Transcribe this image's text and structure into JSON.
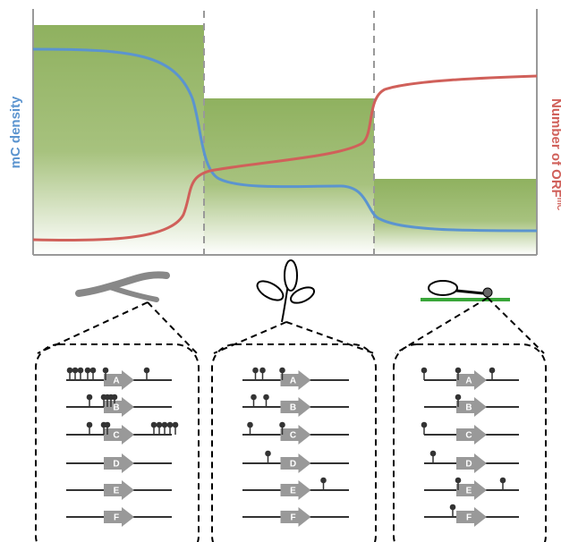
{
  "y_axis_left": "mC density",
  "y_axis_right": {
    "text": "Number of ORF",
    "superscript": "mC"
  },
  "panels": [
    {
      "genes": [
        "A",
        "B",
        "C",
        "D",
        "E",
        "F"
      ]
    },
    {
      "genes": [
        "A",
        "B",
        "C",
        "D",
        "E",
        "F"
      ]
    },
    {
      "genes": [
        "A",
        "B",
        "C",
        "D",
        "E",
        "F"
      ]
    }
  ]
}
